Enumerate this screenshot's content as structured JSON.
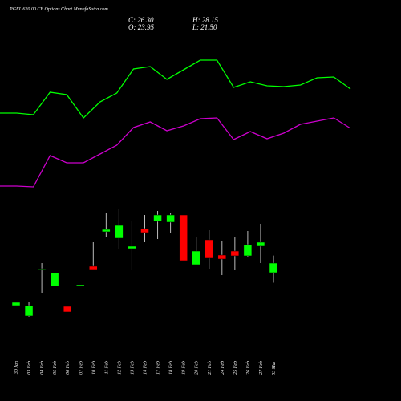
{
  "chart_data": [
    {
      "type": "candlestick",
      "title": "PGEL 620.00 CE Options Chart MunafaSutra.com",
      "info": [
        "C: 26.30",
        "O: 23.95",
        "H: 28.15",
        "L: 21.50"
      ],
      "categories": [
        "30 Jan",
        "03 Feb",
        "04 Feb",
        "05 Feb",
        "06 Feb",
        "07 Feb",
        "10 Feb",
        "11 Feb",
        "12 Feb",
        "13 Feb",
        "14 Feb",
        "17 Feb",
        "18 Feb",
        "19 Feb",
        "20 Feb",
        "21 Feb",
        "24 Feb",
        "25 Feb",
        "26 Feb",
        "27 Feb",
        "03 Mar"
      ],
      "open": [
        15.91,
        13.37,
        24.83,
        20.62,
        15.72,
        20.62,
        25.52,
        33.95,
        32.38,
        29.83,
        34.73,
        36.49,
        36.3,
        38.06,
        25.91,
        31.99,
        28.26,
        29.24,
        28.07,
        30.42,
        23.95
      ],
      "close": [
        16.7,
        15.91,
        24.93,
        23.95,
        14.35,
        21.01,
        24.54,
        34.53,
        35.51,
        30.42,
        33.75,
        38.06,
        38.06,
        26.89,
        29.24,
        27.48,
        27.28,
        28.07,
        30.81,
        31.4,
        26.3
      ],
      "high": [
        16.89,
        16.89,
        26.3,
        23.95,
        15.72,
        21.01,
        31.4,
        38.65,
        39.63,
        36.49,
        38.06,
        39.04,
        38.65,
        38.06,
        32.57,
        34.34,
        31.79,
        32.57,
        34.14,
        35.91,
        28.15
      ],
      "low": [
        15.72,
        13.17,
        19.05,
        20.62,
        14.35,
        20.62,
        24.54,
        32.77,
        29.83,
        24.54,
        31.4,
        32.18,
        33.75,
        26.89,
        25.91,
        24.93,
        23.36,
        24.54,
        27.67,
        26.3,
        21.5
      ],
      "up_color": "#00ff00",
      "down_color": "#ff0000",
      "ylim": [
        -7.41,
        90.59
      ]
    },
    {
      "type": "line",
      "series": [
        {
          "color": "#00ff00",
          "values": [
            71.8,
            71.8,
            71.4,
            77,
            76.4,
            70.6,
            74.6,
            76.8,
            82.8,
            83.4,
            80.2,
            82.6,
            85,
            85,
            78.2,
            79.6,
            78.6,
            78.4,
            78.8,
            80.6,
            80.8,
            77.8
          ]
        },
        {
          "color": "#cc00cc",
          "values": [
            53.6,
            53.6,
            53.4,
            61.2,
            59.4,
            59.4,
            61.6,
            63.8,
            68.2,
            69.6,
            67.4,
            68.6,
            70.4,
            70.6,
            65.2,
            67.2,
            65.4,
            66.8,
            69,
            69.8,
            70.6,
            68
          ]
        }
      ],
      "ylim": [
        0,
        100
      ]
    }
  ]
}
